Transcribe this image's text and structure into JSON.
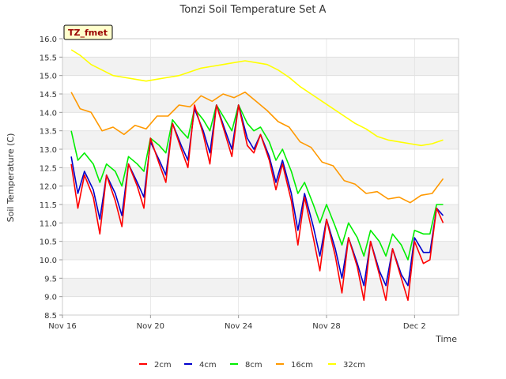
{
  "chart_data": {
    "type": "line",
    "title": "Tonzi Soil Temperature Set A",
    "xlabel": "Time",
    "ylabel": "Soil Temperature (C)",
    "site_label": "TZ_fmet",
    "ylim": [
      8.5,
      16.0
    ],
    "xlim": [
      0,
      18
    ],
    "y_ticks": [
      8.5,
      9.0,
      9.5,
      10.0,
      10.5,
      11.0,
      11.5,
      12.0,
      12.5,
      13.0,
      13.5,
      14.0,
      14.5,
      15.0,
      15.5,
      16.0
    ],
    "x_ticks": [
      {
        "x": 0,
        "label": "Nov 16"
      },
      {
        "x": 4,
        "label": "Nov 20"
      },
      {
        "x": 8,
        "label": "Nov 24"
      },
      {
        "x": 12,
        "label": "Nov 28"
      },
      {
        "x": 16,
        "label": "Dec 2"
      }
    ],
    "legend_position": "bottom",
    "series": [
      {
        "name": "2cm",
        "color": "#ff0000",
        "x": [
          0.4,
          0.7,
          1.0,
          1.4,
          1.7,
          2.0,
          2.4,
          2.7,
          3.0,
          3.4,
          3.7,
          4.0,
          4.4,
          4.7,
          5.0,
          5.4,
          5.7,
          6.0,
          6.4,
          6.7,
          7.0,
          7.4,
          7.7,
          8.0,
          8.4,
          8.7,
          9.0,
          9.4,
          9.7,
          10.0,
          10.4,
          10.7,
          11.0,
          11.4,
          11.7,
          12.0,
          12.4,
          12.7,
          13.0,
          13.4,
          13.7,
          14.0,
          14.4,
          14.7,
          15.0,
          15.4,
          15.7,
          16.0,
          16.4,
          16.7,
          17.0,
          17.3
        ],
        "y": [
          12.6,
          11.4,
          12.3,
          11.7,
          10.7,
          12.3,
          11.6,
          10.9,
          12.6,
          12.0,
          11.4,
          13.3,
          12.6,
          12.1,
          13.7,
          13.0,
          12.5,
          14.2,
          13.4,
          12.6,
          14.2,
          13.4,
          12.8,
          14.2,
          13.1,
          12.9,
          13.4,
          12.7,
          11.9,
          12.6,
          11.6,
          10.4,
          11.7,
          10.6,
          9.7,
          11.1,
          10.1,
          9.1,
          10.6,
          9.8,
          8.9,
          10.5,
          9.6,
          8.9,
          10.3,
          9.5,
          8.9,
          10.5,
          9.9,
          10.0,
          11.4,
          11.0
        ]
      },
      {
        "name": "4cm",
        "color": "#0000cc",
        "x": [
          0.4,
          0.7,
          1.0,
          1.4,
          1.7,
          2.0,
          2.4,
          2.7,
          3.0,
          3.4,
          3.7,
          4.0,
          4.4,
          4.7,
          5.0,
          5.4,
          5.7,
          6.0,
          6.4,
          6.7,
          7.0,
          7.4,
          7.7,
          8.0,
          8.4,
          8.7,
          9.0,
          9.4,
          9.7,
          10.0,
          10.4,
          10.7,
          11.0,
          11.4,
          11.7,
          12.0,
          12.4,
          12.7,
          13.0,
          13.4,
          13.7,
          14.0,
          14.4,
          14.7,
          15.0,
          15.4,
          15.7,
          16.0,
          16.4,
          16.7,
          17.0,
          17.3
        ],
        "y": [
          12.8,
          11.8,
          12.4,
          11.9,
          11.1,
          12.3,
          11.8,
          11.2,
          12.6,
          12.1,
          11.7,
          13.2,
          12.7,
          12.3,
          13.7,
          13.1,
          12.7,
          14.1,
          13.5,
          12.9,
          14.2,
          13.5,
          13.0,
          14.2,
          13.3,
          13.0,
          13.4,
          12.8,
          12.1,
          12.7,
          11.8,
          10.8,
          11.8,
          10.9,
          10.1,
          11.1,
          10.3,
          9.5,
          10.6,
          9.9,
          9.3,
          10.5,
          9.7,
          9.3,
          10.3,
          9.6,
          9.3,
          10.6,
          10.2,
          10.2,
          11.4,
          11.2
        ]
      },
      {
        "name": "8cm",
        "color": "#00ee00",
        "x": [
          0.4,
          0.7,
          1.0,
          1.4,
          1.7,
          2.0,
          2.4,
          2.7,
          3.0,
          3.4,
          3.7,
          4.0,
          4.4,
          4.7,
          5.0,
          5.4,
          5.7,
          6.0,
          6.4,
          6.7,
          7.0,
          7.4,
          7.7,
          8.0,
          8.4,
          8.7,
          9.0,
          9.4,
          9.7,
          10.0,
          10.4,
          10.7,
          11.0,
          11.4,
          11.7,
          12.0,
          12.4,
          12.7,
          13.0,
          13.4,
          13.7,
          14.0,
          14.4,
          14.7,
          15.0,
          15.4,
          15.7,
          16.0,
          16.4,
          16.7,
          17.0,
          17.3
        ],
        "y": [
          13.5,
          12.7,
          12.9,
          12.6,
          12.1,
          12.6,
          12.4,
          12.0,
          12.8,
          12.6,
          12.4,
          13.3,
          13.1,
          12.9,
          13.8,
          13.5,
          13.3,
          14.1,
          13.8,
          13.5,
          14.2,
          13.8,
          13.5,
          14.2,
          13.7,
          13.5,
          13.6,
          13.2,
          12.7,
          13.0,
          12.4,
          11.8,
          12.1,
          11.5,
          11.0,
          11.5,
          10.9,
          10.4,
          11.0,
          10.6,
          10.1,
          10.8,
          10.5,
          10.1,
          10.7,
          10.4,
          10.0,
          10.8,
          10.7,
          10.7,
          11.5,
          11.5
        ]
      },
      {
        "name": "16cm",
        "color": "#ff9900",
        "x": [
          0.4,
          0.8,
          1.3,
          1.8,
          2.3,
          2.8,
          3.3,
          3.8,
          4.3,
          4.8,
          5.3,
          5.8,
          6.3,
          6.8,
          7.3,
          7.8,
          8.3,
          8.8,
          9.3,
          9.8,
          10.3,
          10.8,
          11.3,
          11.8,
          12.3,
          12.8,
          13.3,
          13.8,
          14.3,
          14.8,
          15.3,
          15.8,
          16.3,
          16.8,
          17.3
        ],
        "y": [
          14.55,
          14.1,
          14.0,
          13.5,
          13.6,
          13.4,
          13.65,
          13.55,
          13.9,
          13.9,
          14.2,
          14.15,
          14.45,
          14.3,
          14.5,
          14.4,
          14.55,
          14.3,
          14.05,
          13.75,
          13.6,
          13.2,
          13.05,
          12.65,
          12.55,
          12.15,
          12.05,
          11.8,
          11.85,
          11.65,
          11.7,
          11.55,
          11.75,
          11.8,
          12.2
        ]
      },
      {
        "name": "32cm",
        "color": "#ffff00",
        "x": [
          0.4,
          0.8,
          1.3,
          1.8,
          2.3,
          2.8,
          3.3,
          3.8,
          4.3,
          4.8,
          5.3,
          5.8,
          6.3,
          6.8,
          7.3,
          7.8,
          8.3,
          8.8,
          9.3,
          9.8,
          10.3,
          10.8,
          11.3,
          11.8,
          12.3,
          12.8,
          13.3,
          13.8,
          14.3,
          14.8,
          15.3,
          15.8,
          16.3,
          16.8,
          17.3
        ],
        "y": [
          15.7,
          15.55,
          15.3,
          15.15,
          15.0,
          14.95,
          14.9,
          14.85,
          14.9,
          14.95,
          15.0,
          15.1,
          15.2,
          15.25,
          15.3,
          15.35,
          15.4,
          15.35,
          15.3,
          15.15,
          14.95,
          14.7,
          14.5,
          14.3,
          14.1,
          13.9,
          13.7,
          13.55,
          13.35,
          13.25,
          13.2,
          13.15,
          13.1,
          13.15,
          13.25
        ]
      }
    ]
  }
}
